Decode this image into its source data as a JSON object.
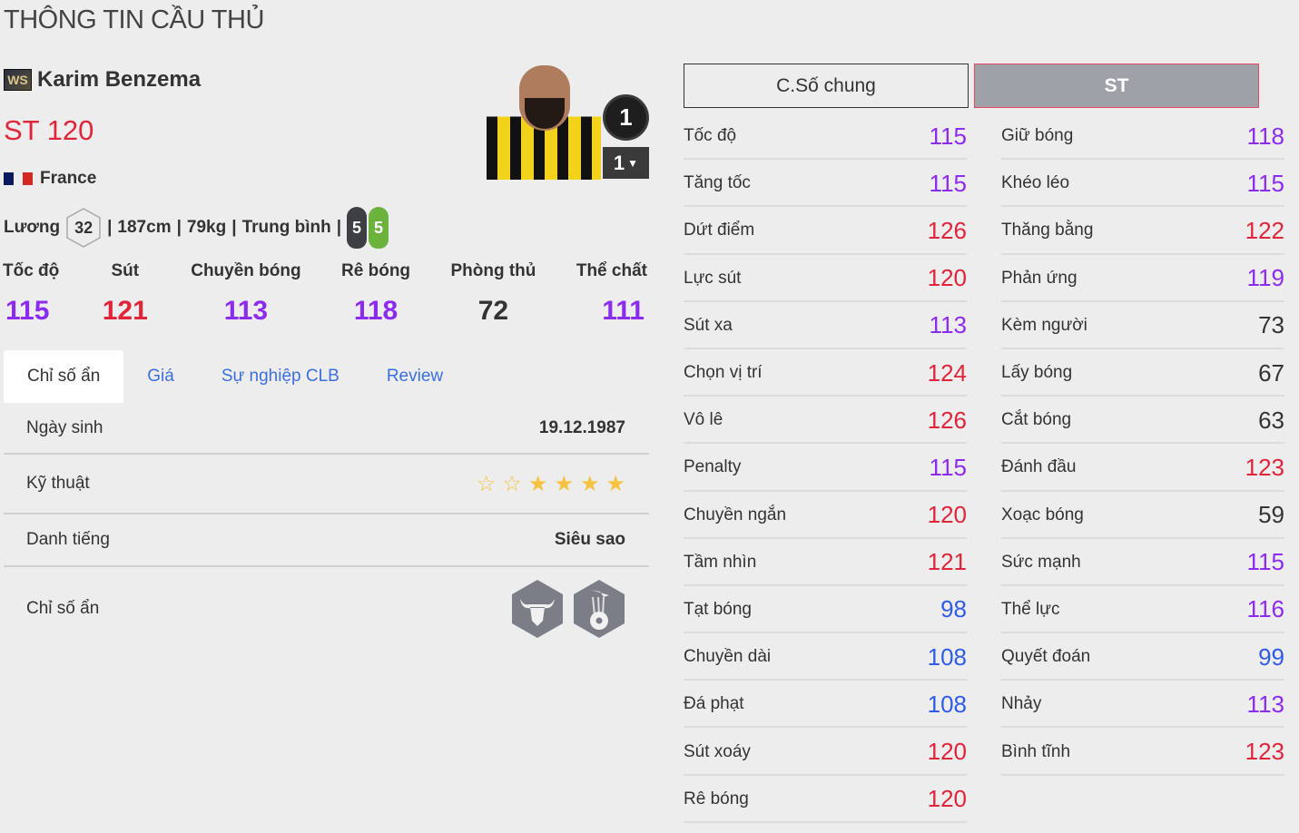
{
  "page_title": "THÔNG TIN CẦU THỦ",
  "player": {
    "season_badge": "WS",
    "name": "Karim Benzema",
    "position": "ST",
    "rating": "120",
    "nation": "France",
    "flag_colors": [
      "#0b1a5e",
      "#ffffff",
      "#d22a22"
    ],
    "salary_label": "Lương",
    "salary": "32",
    "height": "187cm",
    "weight": "79kg",
    "body_type": "Trung bình",
    "weak_foot": "5",
    "strong_foot": "5",
    "level": "1",
    "level_select": "1"
  },
  "main_stats": [
    {
      "label": "Tốc độ",
      "value": "115",
      "color": "#8c2bf0"
    },
    {
      "label": "Sút",
      "value": "121",
      "color": "#e0243a"
    },
    {
      "label": "Chuyền bóng",
      "value": "113",
      "color": "#8c2bf0"
    },
    {
      "label": "Rê bóng",
      "value": "118",
      "color": "#8c2bf0"
    },
    {
      "label": "Phòng thủ",
      "value": "72",
      "color": "#333333"
    },
    {
      "label": "Thể chất",
      "value": "111",
      "color": "#8c2bf0"
    }
  ],
  "tabs": [
    {
      "label": "Chỉ số ẩn",
      "active": true
    },
    {
      "label": "Giá"
    },
    {
      "label": "Sự nghiệp CLB"
    },
    {
      "label": "Review"
    }
  ],
  "details": {
    "birth_label": "Ngày sinh",
    "birth": "19.12.1987",
    "skill_label": "Kỹ thuật",
    "skill_stars": 4,
    "skill_max": 6,
    "fame_label": "Danh tiếng",
    "fame": "Siêu sao",
    "hidden_label": "Chỉ số ẩn",
    "hidden_traits": [
      "bull-icon",
      "flying-ball-icon"
    ]
  },
  "buttons": {
    "general": "C.Số chung",
    "position": "ST"
  },
  "colors": {
    "purple": "#8c2bf0",
    "red": "#e0243a",
    "blue": "#2e5be8",
    "dark": "#333333"
  },
  "stats_left": [
    [
      "Tốc độ",
      "115"
    ],
    [
      "Tăng tốc",
      "115"
    ],
    [
      "Dứt điểm",
      "126"
    ],
    [
      "Lực sút",
      "120"
    ],
    [
      "Sút xa",
      "113"
    ],
    [
      "Chọn vị trí",
      "124"
    ],
    [
      "Vô lê",
      "126"
    ],
    [
      "Penalty",
      "115"
    ],
    [
      "Chuyền ngắn",
      "120"
    ],
    [
      "Tầm nhìn",
      "121"
    ],
    [
      "Tạt bóng",
      "98"
    ],
    [
      "Chuyền dài",
      "108"
    ],
    [
      "Đá phạt",
      "108"
    ],
    [
      "Sút xoáy",
      "120"
    ],
    [
      "Rê bóng",
      "120"
    ]
  ],
  "stats_right": [
    [
      "Giữ bóng",
      "118"
    ],
    [
      "Khéo léo",
      "115"
    ],
    [
      "Thăng bằng",
      "122"
    ],
    [
      "Phản ứng",
      "119"
    ],
    [
      "Kèm người",
      "73"
    ],
    [
      "Lấy bóng",
      "67"
    ],
    [
      "Cắt bóng",
      "63"
    ],
    [
      "Đánh đầu",
      "123"
    ],
    [
      "Xoạc bóng",
      "59"
    ],
    [
      "Sức mạnh",
      "115"
    ],
    [
      "Thể lực",
      "116"
    ],
    [
      "Quyết đoán",
      "99"
    ],
    [
      "Nhảy",
      "113"
    ],
    [
      "Bình tĩnh",
      "123"
    ]
  ]
}
